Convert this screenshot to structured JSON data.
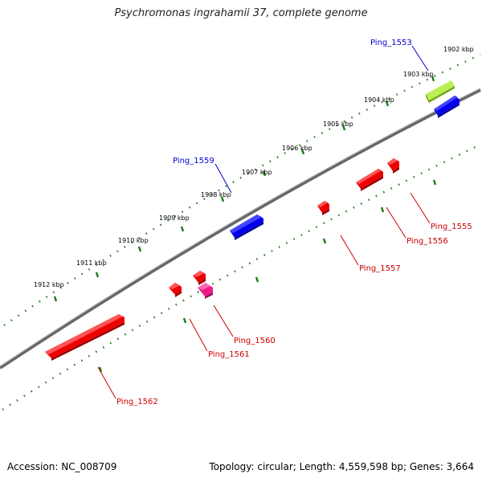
{
  "title": "Psychromonas ingrahamii 37, complete genome",
  "footer": {
    "accession": "Accession: NC_008709",
    "topology": "Topology: circular; Length: 4,559,598 bp; Genes: 3,664"
  },
  "colors": {
    "genome_line": "#777777",
    "ticks": "#1a7a1a",
    "red_gene": "#ee0000",
    "blue_gene": "#0000ee",
    "green_gene": "#99ee22",
    "pink_gene": "#ee1a88",
    "label_blue": "#0000cc",
    "label_red": "#cc0000"
  },
  "kbp_labels": [
    "1902 kbp",
    "1903 kbp",
    "1904 kbp",
    "1905 kbp",
    "1906 kbp",
    "1907 kbp",
    "1908 kbp",
    "1909 kbp",
    "1910 kbp",
    "1911 kbp",
    "1912 kbp"
  ],
  "genes": [
    {
      "name": "Ping_1553",
      "strand": "forward",
      "color": "green"
    },
    {
      "name": "Ping_1555",
      "strand": "reverse",
      "color": "red"
    },
    {
      "name": "Ping_1556",
      "strand": "reverse",
      "color": "red"
    },
    {
      "name": "Ping_1557",
      "strand": "reverse",
      "color": "red"
    },
    {
      "name": "Ping_1559",
      "strand": "forward",
      "color": "blue"
    },
    {
      "name": "Ping_1560",
      "strand": "reverse",
      "color": "pink"
    },
    {
      "name": "Ping_1561",
      "strand": "reverse",
      "color": "red"
    },
    {
      "name": "Ping_1562",
      "strand": "reverse",
      "color": "red"
    }
  ]
}
